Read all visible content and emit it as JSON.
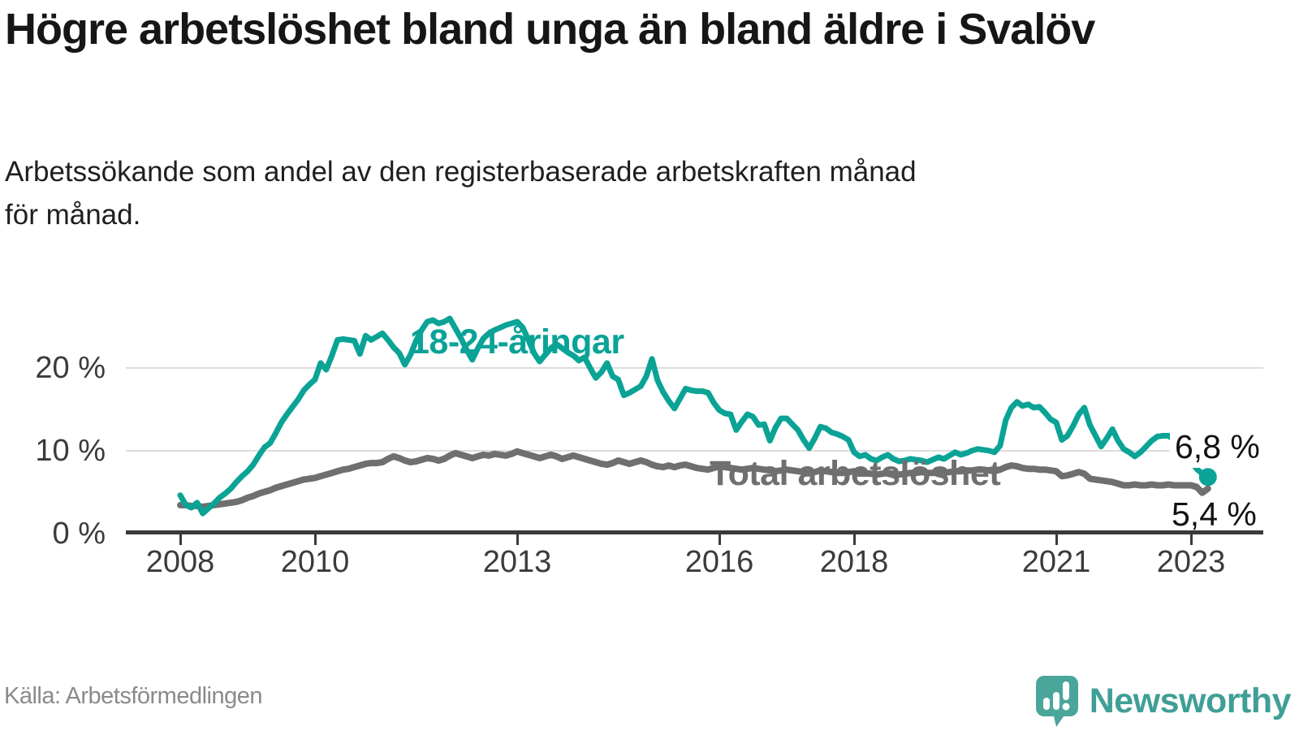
{
  "header": {
    "title": "Högre arbetslöshet bland unga än bland äldre i Svalöv",
    "subtitle": "Arbetssökande som andel av den registerbaserade arbetskraften månad\nför månad."
  },
  "footer": {
    "source": "Källa: Arbetsförmedlingen",
    "logo_text": "Newsworthy",
    "logo_color": "#45a49a"
  },
  "chart_data": {
    "type": "line",
    "unit": "%",
    "x_unit": "month",
    "x_start": "2008-01",
    "x_end": "2023-04",
    "grid": true,
    "ylim": [
      0,
      27
    ],
    "yticks": [
      {
        "value": 0,
        "label": "0 %"
      },
      {
        "value": 10,
        "label": "10 %"
      },
      {
        "value": 20,
        "label": "20 %"
      }
    ],
    "xticks": [
      {
        "year": 2008,
        "label": "2008"
      },
      {
        "year": 2010,
        "label": "2010"
      },
      {
        "year": 2013,
        "label": "2013"
      },
      {
        "year": 2016,
        "label": "2016"
      },
      {
        "year": 2018,
        "label": "2018"
      },
      {
        "year": 2021,
        "label": "2021"
      },
      {
        "year": 2023,
        "label": "2023"
      }
    ],
    "series": [
      {
        "name": "18-24-åringar",
        "color": "#0aa396",
        "end_label": "6,8 %",
        "end_value": 6.8,
        "values": [
          4.6,
          3.4,
          3.1,
          3.7,
          2.4,
          3.0,
          3.6,
          4.3,
          4.8,
          5.4,
          6.2,
          6.9,
          7.5,
          8.3,
          9.4,
          10.4,
          10.9,
          12.1,
          13.4,
          14.4,
          15.3,
          16.2,
          17.3,
          18.0,
          18.6,
          20.6,
          19.8,
          21.5,
          23.4,
          23.5,
          23.4,
          23.3,
          21.7,
          23.9,
          23.4,
          23.8,
          24.2,
          23.4,
          22.5,
          21.8,
          20.4,
          21.6,
          23.3,
          24.6,
          25.6,
          25.8,
          25.4,
          25.6,
          26.0,
          24.8,
          23.6,
          22.2,
          21.0,
          22.4,
          23.6,
          24.2,
          24.6,
          24.9,
          25.2,
          25.4,
          25.6,
          24.9,
          23.4,
          21.8,
          20.8,
          21.6,
          22.4,
          22.9,
          22.4,
          21.9,
          21.5,
          20.9,
          21.3,
          20.0,
          18.8,
          19.5,
          20.6,
          19.0,
          18.6,
          16.7,
          17.0,
          17.4,
          17.8,
          19.0,
          21.1,
          18.5,
          17.1,
          16.0,
          15.1,
          16.3,
          17.5,
          17.3,
          17.2,
          17.2,
          17.0,
          15.8,
          14.9,
          14.5,
          14.4,
          12.5,
          13.5,
          14.4,
          14.1,
          13.1,
          13.2,
          11.2,
          12.8,
          13.9,
          13.9,
          13.2,
          12.5,
          11.3,
          10.3,
          11.5,
          12.9,
          12.7,
          12.2,
          12.0,
          11.7,
          11.3,
          9.8,
          9.3,
          9.5,
          9.0,
          8.8,
          9.2,
          9.5,
          9.0,
          8.7,
          8.8,
          9.0,
          8.9,
          8.8,
          8.6,
          8.9,
          9.2,
          9.0,
          9.4,
          9.8,
          9.5,
          9.7,
          10.0,
          10.2,
          10.1,
          10.0,
          9.8,
          10.6,
          13.7,
          15.2,
          15.9,
          15.4,
          15.6,
          15.2,
          15.3,
          14.6,
          13.8,
          13.4,
          11.3,
          11.8,
          13.0,
          14.4,
          15.2,
          13.1,
          11.8,
          10.5,
          11.5,
          12.6,
          11.2,
          10.2,
          9.8,
          9.3,
          9.8,
          10.5,
          11.2,
          11.7,
          11.8,
          11.8,
          11.3,
          10.4,
          9.5,
          8.7,
          7.8,
          7.2,
          6.8
        ]
      },
      {
        "name": "Total arbetslöshet",
        "color": "#6f6f6f",
        "end_label": "5,4 %",
        "end_value": 5.4,
        "values": [
          3.4,
          3.4,
          3.3,
          3.3,
          3.2,
          3.3,
          3.4,
          3.5,
          3.6,
          3.7,
          3.8,
          4.0,
          4.3,
          4.5,
          4.8,
          5.0,
          5.2,
          5.5,
          5.7,
          5.9,
          6.1,
          6.3,
          6.5,
          6.6,
          6.7,
          6.9,
          7.1,
          7.3,
          7.5,
          7.7,
          7.8,
          8.0,
          8.2,
          8.4,
          8.5,
          8.5,
          8.6,
          9.0,
          9.3,
          9.1,
          8.8,
          8.6,
          8.7,
          8.9,
          9.1,
          9.0,
          8.8,
          9.0,
          9.4,
          9.7,
          9.5,
          9.3,
          9.1,
          9.3,
          9.5,
          9.4,
          9.6,
          9.5,
          9.4,
          9.6,
          9.9,
          9.7,
          9.5,
          9.3,
          9.1,
          9.3,
          9.5,
          9.3,
          9.0,
          9.2,
          9.4,
          9.2,
          9.0,
          8.8,
          8.6,
          8.4,
          8.3,
          8.5,
          8.8,
          8.6,
          8.4,
          8.6,
          8.8,
          8.6,
          8.3,
          8.1,
          8.0,
          8.2,
          8.0,
          8.2,
          8.3,
          8.1,
          7.9,
          7.8,
          7.7,
          7.9,
          8.1,
          8.0,
          7.9,
          7.8,
          7.7,
          7.8,
          7.9,
          7.8,
          7.7,
          7.6,
          7.5,
          7.6,
          7.7,
          7.6,
          7.5,
          7.4,
          7.3,
          7.4,
          7.6,
          7.5,
          7.4,
          7.3,
          7.3,
          7.4,
          7.5,
          7.4,
          7.3,
          7.2,
          7.1,
          7.2,
          7.3,
          7.2,
          7.1,
          7.2,
          7.3,
          7.3,
          7.4,
          7.3,
          7.3,
          7.4,
          7.3,
          7.4,
          7.5,
          7.5,
          7.6,
          7.6,
          7.7,
          7.7,
          7.6,
          7.5,
          7.7,
          8.0,
          8.2,
          8.1,
          7.9,
          7.8,
          7.8,
          7.7,
          7.7,
          7.6,
          7.5,
          6.9,
          7.0,
          7.2,
          7.4,
          7.2,
          6.6,
          6.5,
          6.4,
          6.3,
          6.2,
          6.0,
          5.8,
          5.8,
          5.9,
          5.8,
          5.8,
          5.9,
          5.8,
          5.8,
          5.9,
          5.8,
          5.8,
          5.8,
          5.8,
          5.6,
          4.9,
          5.4
        ]
      }
    ]
  }
}
